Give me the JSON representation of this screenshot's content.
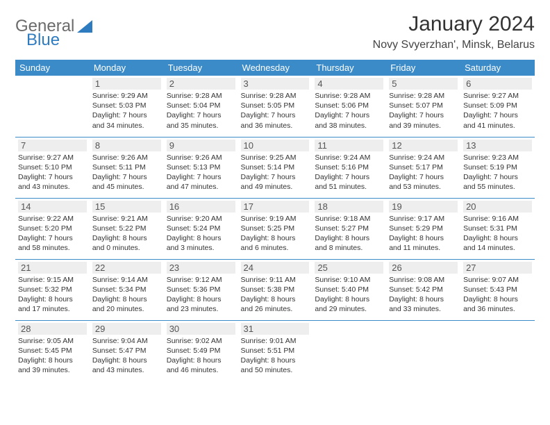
{
  "logo": {
    "part1": "General",
    "part2": "Blue"
  },
  "title": "January 2024",
  "location": "Novy Svyerzhan', Minsk, Belarus",
  "weekdays": [
    "Sunday",
    "Monday",
    "Tuesday",
    "Wednesday",
    "Thursday",
    "Friday",
    "Saturday"
  ],
  "colors": {
    "header_bg": "#3b8bc9",
    "header_fg": "#ffffff",
    "daynum_bg": "#eeeeee",
    "border": "#3b8bc9",
    "logo_blue": "#2f7bbf",
    "logo_gray": "#6b6b6b"
  },
  "weeks": [
    [
      {
        "n": "",
        "sr": "",
        "ss": "",
        "dl": ""
      },
      {
        "n": "1",
        "sr": "Sunrise: 9:29 AM",
        "ss": "Sunset: 5:03 PM",
        "dl": "Daylight: 7 hours and 34 minutes."
      },
      {
        "n": "2",
        "sr": "Sunrise: 9:28 AM",
        "ss": "Sunset: 5:04 PM",
        "dl": "Daylight: 7 hours and 35 minutes."
      },
      {
        "n": "3",
        "sr": "Sunrise: 9:28 AM",
        "ss": "Sunset: 5:05 PM",
        "dl": "Daylight: 7 hours and 36 minutes."
      },
      {
        "n": "4",
        "sr": "Sunrise: 9:28 AM",
        "ss": "Sunset: 5:06 PM",
        "dl": "Daylight: 7 hours and 38 minutes."
      },
      {
        "n": "5",
        "sr": "Sunrise: 9:28 AM",
        "ss": "Sunset: 5:07 PM",
        "dl": "Daylight: 7 hours and 39 minutes."
      },
      {
        "n": "6",
        "sr": "Sunrise: 9:27 AM",
        "ss": "Sunset: 5:09 PM",
        "dl": "Daylight: 7 hours and 41 minutes."
      }
    ],
    [
      {
        "n": "7",
        "sr": "Sunrise: 9:27 AM",
        "ss": "Sunset: 5:10 PM",
        "dl": "Daylight: 7 hours and 43 minutes."
      },
      {
        "n": "8",
        "sr": "Sunrise: 9:26 AM",
        "ss": "Sunset: 5:11 PM",
        "dl": "Daylight: 7 hours and 45 minutes."
      },
      {
        "n": "9",
        "sr": "Sunrise: 9:26 AM",
        "ss": "Sunset: 5:13 PM",
        "dl": "Daylight: 7 hours and 47 minutes."
      },
      {
        "n": "10",
        "sr": "Sunrise: 9:25 AM",
        "ss": "Sunset: 5:14 PM",
        "dl": "Daylight: 7 hours and 49 minutes."
      },
      {
        "n": "11",
        "sr": "Sunrise: 9:24 AM",
        "ss": "Sunset: 5:16 PM",
        "dl": "Daylight: 7 hours and 51 minutes."
      },
      {
        "n": "12",
        "sr": "Sunrise: 9:24 AM",
        "ss": "Sunset: 5:17 PM",
        "dl": "Daylight: 7 hours and 53 minutes."
      },
      {
        "n": "13",
        "sr": "Sunrise: 9:23 AM",
        "ss": "Sunset: 5:19 PM",
        "dl": "Daylight: 7 hours and 55 minutes."
      }
    ],
    [
      {
        "n": "14",
        "sr": "Sunrise: 9:22 AM",
        "ss": "Sunset: 5:20 PM",
        "dl": "Daylight: 7 hours and 58 minutes."
      },
      {
        "n": "15",
        "sr": "Sunrise: 9:21 AM",
        "ss": "Sunset: 5:22 PM",
        "dl": "Daylight: 8 hours and 0 minutes."
      },
      {
        "n": "16",
        "sr": "Sunrise: 9:20 AM",
        "ss": "Sunset: 5:24 PM",
        "dl": "Daylight: 8 hours and 3 minutes."
      },
      {
        "n": "17",
        "sr": "Sunrise: 9:19 AM",
        "ss": "Sunset: 5:25 PM",
        "dl": "Daylight: 8 hours and 6 minutes."
      },
      {
        "n": "18",
        "sr": "Sunrise: 9:18 AM",
        "ss": "Sunset: 5:27 PM",
        "dl": "Daylight: 8 hours and 8 minutes."
      },
      {
        "n": "19",
        "sr": "Sunrise: 9:17 AM",
        "ss": "Sunset: 5:29 PM",
        "dl": "Daylight: 8 hours and 11 minutes."
      },
      {
        "n": "20",
        "sr": "Sunrise: 9:16 AM",
        "ss": "Sunset: 5:31 PM",
        "dl": "Daylight: 8 hours and 14 minutes."
      }
    ],
    [
      {
        "n": "21",
        "sr": "Sunrise: 9:15 AM",
        "ss": "Sunset: 5:32 PM",
        "dl": "Daylight: 8 hours and 17 minutes."
      },
      {
        "n": "22",
        "sr": "Sunrise: 9:14 AM",
        "ss": "Sunset: 5:34 PM",
        "dl": "Daylight: 8 hours and 20 minutes."
      },
      {
        "n": "23",
        "sr": "Sunrise: 9:12 AM",
        "ss": "Sunset: 5:36 PM",
        "dl": "Daylight: 8 hours and 23 minutes."
      },
      {
        "n": "24",
        "sr": "Sunrise: 9:11 AM",
        "ss": "Sunset: 5:38 PM",
        "dl": "Daylight: 8 hours and 26 minutes."
      },
      {
        "n": "25",
        "sr": "Sunrise: 9:10 AM",
        "ss": "Sunset: 5:40 PM",
        "dl": "Daylight: 8 hours and 29 minutes."
      },
      {
        "n": "26",
        "sr": "Sunrise: 9:08 AM",
        "ss": "Sunset: 5:42 PM",
        "dl": "Daylight: 8 hours and 33 minutes."
      },
      {
        "n": "27",
        "sr": "Sunrise: 9:07 AM",
        "ss": "Sunset: 5:43 PM",
        "dl": "Daylight: 8 hours and 36 minutes."
      }
    ],
    [
      {
        "n": "28",
        "sr": "Sunrise: 9:05 AM",
        "ss": "Sunset: 5:45 PM",
        "dl": "Daylight: 8 hours and 39 minutes."
      },
      {
        "n": "29",
        "sr": "Sunrise: 9:04 AM",
        "ss": "Sunset: 5:47 PM",
        "dl": "Daylight: 8 hours and 43 minutes."
      },
      {
        "n": "30",
        "sr": "Sunrise: 9:02 AM",
        "ss": "Sunset: 5:49 PM",
        "dl": "Daylight: 8 hours and 46 minutes."
      },
      {
        "n": "31",
        "sr": "Sunrise: 9:01 AM",
        "ss": "Sunset: 5:51 PM",
        "dl": "Daylight: 8 hours and 50 minutes."
      },
      {
        "n": "",
        "sr": "",
        "ss": "",
        "dl": ""
      },
      {
        "n": "",
        "sr": "",
        "ss": "",
        "dl": ""
      },
      {
        "n": "",
        "sr": "",
        "ss": "",
        "dl": ""
      }
    ]
  ]
}
